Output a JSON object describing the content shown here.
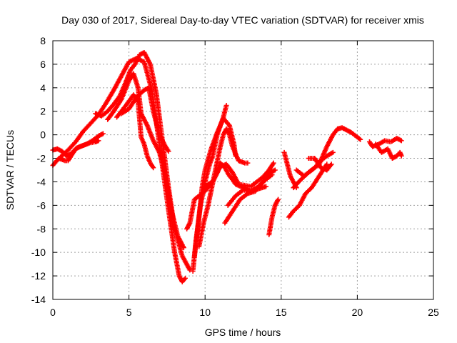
{
  "chart_data": {
    "type": "scatter",
    "title": "Day 030 of 2017, Sidereal Day-to-day VTEC variation (SDTVAR) for receiver xmis",
    "xlabel": "GPS time / hours",
    "ylabel": "SDTVAR / TECUs",
    "xlim": [
      0,
      25
    ],
    "ylim": [
      -14,
      8
    ],
    "xticks": [
      0,
      5,
      10,
      15,
      20,
      25
    ],
    "yticks": [
      -14,
      -12,
      -10,
      -8,
      -6,
      -4,
      -2,
      0,
      2,
      4,
      6,
      8
    ],
    "grid": true,
    "marker": "plus",
    "color": "#ff0000",
    "series": [
      {
        "x": [
          0,
          0.3,
          0.6,
          0.9,
          1.2,
          1.6,
          2.0,
          2.4,
          2.8,
          3.0
        ],
        "y": [
          -1.3,
          -1.2,
          -1.4,
          -1.8,
          -1.6,
          -1.1,
          -0.9,
          -0.7,
          -0.6,
          -0.5
        ]
      },
      {
        "x": [
          0,
          0.4,
          0.8,
          1.0,
          1.2,
          1.5,
          1.8,
          2.2,
          2.6,
          3.0,
          3.3
        ],
        "y": [
          -2.6,
          -2.0,
          -2.2,
          -2.2,
          -1.8,
          -1.2,
          -1.0,
          -0.8,
          -0.5,
          -0.1,
          0.1
        ]
      },
      {
        "x": [
          0.5,
          1.0,
          1.5,
          2.0,
          2.5,
          3.0,
          3.5,
          4.0,
          4.5,
          5.0,
          5.5,
          6.0,
          6.5,
          7.0,
          7.5,
          8.0,
          8.3,
          8.5,
          8.7
        ],
        "y": [
          -1.9,
          -1.3,
          -0.6,
          0.3,
          1.0,
          1.7,
          2.7,
          3.8,
          5.0,
          6.2,
          6.5,
          6.2,
          3.8,
          -0.8,
          -5.5,
          -10.0,
          -12.0,
          -12.5,
          -12.2
        ]
      },
      {
        "x": [
          2.8,
          3.2,
          3.6,
          4.0,
          4.4,
          4.8,
          5.1,
          5.4,
          5.7,
          6.0,
          6.4,
          6.8,
          7.2,
          7.6,
          8.0,
          8.5,
          9.0
        ],
        "y": [
          1.8,
          1.6,
          2.0,
          2.6,
          3.3,
          4.5,
          5.5,
          6.0,
          6.8,
          7.0,
          6.0,
          3.5,
          -0.5,
          -4.5,
          -8.0,
          -10.3,
          -11.5
        ]
      },
      {
        "x": [
          3.6,
          4.0,
          4.5,
          5.0,
          5.3,
          5.6,
          5.8,
          6.2,
          6.6,
          7.0,
          7.4,
          7.8,
          8.2,
          8.6
        ],
        "y": [
          1.3,
          2.0,
          3.0,
          4.6,
          5.2,
          4.0,
          1.8,
          0.8,
          -0.5,
          -1.5,
          -3.5,
          -6.5,
          -8.6,
          -9.6
        ]
      },
      {
        "x": [
          4.2,
          4.8,
          5.3,
          5.6,
          5.8,
          6.0,
          6.2,
          6.4,
          6.6
        ],
        "y": [
          1.5,
          2.5,
          3.4,
          2.8,
          -0.2,
          -0.8,
          -1.8,
          -2.4,
          -2.8
        ]
      },
      {
        "x": [
          4.5,
          5.0,
          5.5,
          6.0,
          6.3,
          6.6,
          7.0,
          7.4,
          7.6
        ],
        "y": [
          1.8,
          2.2,
          3.2,
          3.8,
          4.0,
          2.0,
          0.0,
          -1.0,
          -1.4
        ]
      },
      {
        "x": [
          9.2,
          9.4,
          9.7,
          10.0,
          10.3,
          10.5,
          10.8,
          11.2,
          11.4
        ],
        "y": [
          -11.6,
          -9.0,
          -6.0,
          -4.0,
          -2.5,
          -1.8,
          0.0,
          1.5,
          2.5
        ]
      },
      {
        "x": [
          9.3,
          9.6,
          9.8,
          10.0,
          10.4,
          10.8,
          11.2,
          11.6,
          11.9,
          12.0
        ],
        "y": [
          -10.4,
          -7.0,
          -4.5,
          -3.0,
          -1.2,
          0.2,
          1.4,
          0.8,
          -0.8,
          -1.8
        ]
      },
      {
        "x": [
          9.6,
          9.9,
          10.2,
          10.6,
          11.0,
          11.2,
          11.4,
          11.6,
          11.8,
          12.2,
          12.6,
          12.8
        ],
        "y": [
          -9.5,
          -7.5,
          -6.0,
          -3.5,
          -1.0,
          0.0,
          0.5,
          0.0,
          -1.0,
          -2.2,
          -2.4,
          -2.4
        ]
      },
      {
        "x": [
          8.8,
          9.0,
          9.3,
          9.8,
          10.2,
          10.5,
          10.8,
          11.0,
          11.3,
          11.6,
          11.8,
          12.0,
          12.5,
          13.0,
          13.5,
          14.0
        ],
        "y": [
          -8.0,
          -7.5,
          -5.5,
          -5.0,
          -4.2,
          -4.0,
          -3.2,
          -2.4,
          -2.8,
          -3.5,
          -3.8,
          -4.2,
          -4.5,
          -4.8,
          -4.6,
          -4.4
        ]
      },
      {
        "x": [
          10.0,
          10.5,
          11.0,
          11.4,
          11.8,
          12.2,
          12.6,
          13.0,
          13.4,
          13.8,
          14.2,
          14.5
        ],
        "y": [
          -4.8,
          -4.0,
          -2.7,
          -2.5,
          -3.2,
          -4.2,
          -4.3,
          -4.4,
          -4.0,
          -3.6,
          -3.0,
          -2.4
        ]
      },
      {
        "x": [
          11.3,
          11.8,
          12.3,
          12.8,
          13.3,
          13.8,
          14.3,
          14.6
        ],
        "y": [
          -7.5,
          -6.5,
          -5.5,
          -5.0,
          -4.8,
          -4.0,
          -3.2,
          -3.0
        ]
      },
      {
        "x": [
          11.5,
          12.0,
          12.5,
          13.0,
          13.5,
          14.0,
          14.4
        ],
        "y": [
          -6.0,
          -5.2,
          -4.7,
          -4.8,
          -4.4,
          -3.8,
          -3.4
        ]
      },
      {
        "x": [
          14.2,
          14.4,
          14.6,
          14.8
        ],
        "y": [
          -8.5,
          -7.0,
          -6.0,
          -5.5
        ]
      },
      {
        "x": [
          15.2,
          15.4,
          15.6,
          16.0
        ],
        "y": [
          -1.5,
          -2.5,
          -3.5,
          -4.5
        ]
      },
      {
        "x": [
          15.5,
          15.8,
          16.2,
          16.6,
          17.0,
          17.5,
          18.0
        ],
        "y": [
          -7.0,
          -6.5,
          -6.0,
          -5.0,
          -4.5,
          -3.5,
          -2.5
        ]
      },
      {
        "x": [
          15.8,
          16.3,
          16.8,
          17.2,
          17.6,
          18.0,
          18.4
        ],
        "y": [
          -4.5,
          -3.8,
          -3.2,
          -2.8,
          -2.2,
          -1.8,
          -1.5
        ]
      },
      {
        "x": [
          16.0,
          16.5,
          17.0,
          17.5,
          18.0,
          18.4,
          18.7,
          19.0,
          19.3,
          19.6,
          20.0,
          20.2
        ],
        "y": [
          -3.0,
          -3.5,
          -3.0,
          -2.5,
          -1.0,
          0.0,
          0.5,
          0.6,
          0.4,
          0.2,
          -0.2,
          -0.4
        ]
      },
      {
        "x": [
          16.8,
          17.2,
          17.6,
          18.0,
          18.3
        ],
        "y": [
          -2.0,
          -2.0,
          -2.8,
          -3.0,
          -2.5
        ]
      },
      {
        "x": [
          20.8,
          21.0,
          21.4,
          21.8,
          22.2,
          22.6,
          22.9
        ],
        "y": [
          -0.6,
          -1.0,
          -0.8,
          -0.5,
          -0.6,
          -0.3,
          -0.5
        ]
      },
      {
        "x": [
          21.2,
          21.6,
          22.0,
          22.3,
          22.6,
          22.8,
          22.9
        ],
        "y": [
          -0.8,
          -1.5,
          -1.2,
          -2.0,
          -1.8,
          -1.5,
          -1.8
        ]
      }
    ]
  }
}
